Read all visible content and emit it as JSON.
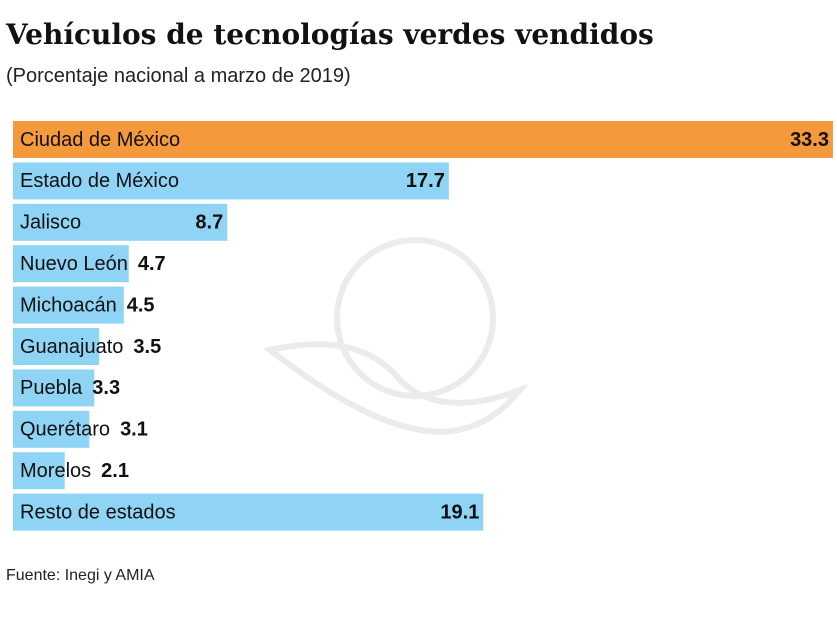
{
  "chart_data": {
    "type": "bar",
    "orientation": "horizontal",
    "title": "Vehículos de tecnologías verdes vendidos",
    "subtitle": "(Porcentaje nacional a marzo de 2019)",
    "source": "Fuente: Inegi y AMIA",
    "categories": [
      "Ciudad de México",
      "Estado de México",
      "Jalisco",
      "Nuevo León",
      "Michoacán",
      "Guanajuato",
      "Puebla",
      "Querétaro",
      "Morelos",
      "Resto de estados"
    ],
    "values": [
      33.3,
      17.7,
      8.7,
      4.7,
      4.5,
      3.5,
      3.3,
      3.1,
      2.1,
      19.1
    ],
    "colors": [
      "#f5993d",
      "#8fd4f5",
      "#8fd4f5",
      "#8fd4f5",
      "#8fd4f5",
      "#8fd4f5",
      "#8fd4f5",
      "#8fd4f5",
      "#8fd4f5",
      "#8fd4f5"
    ]
  }
}
